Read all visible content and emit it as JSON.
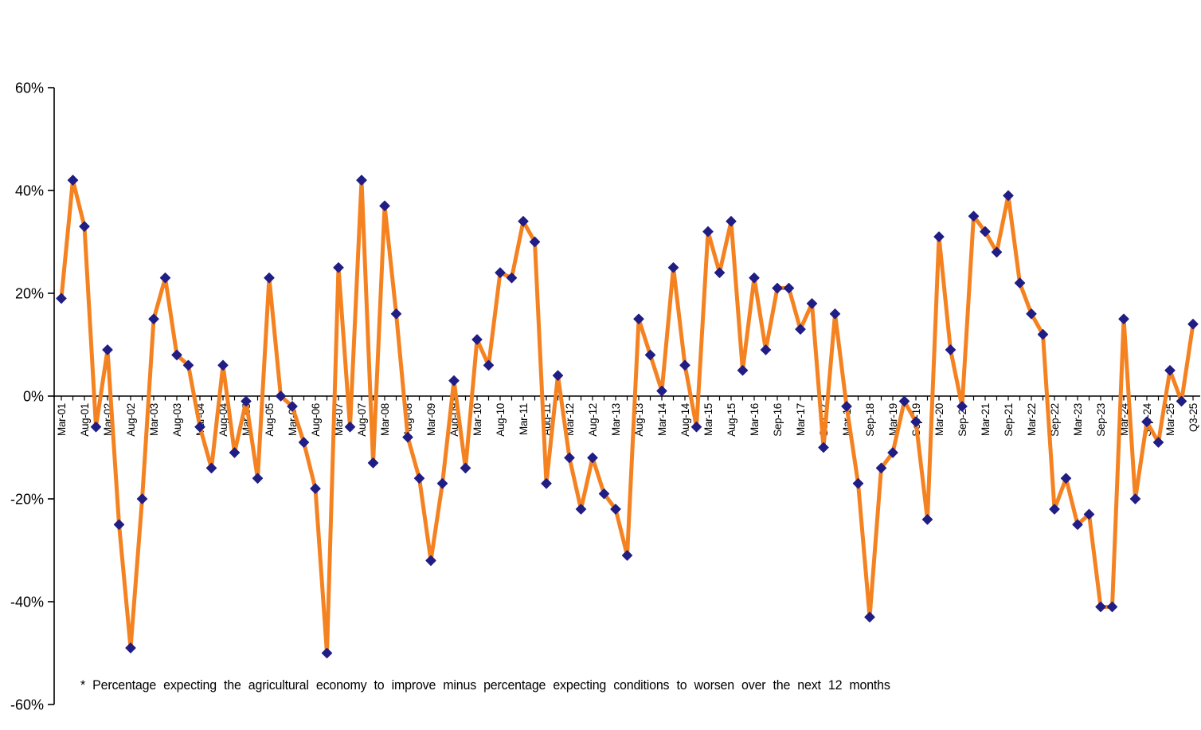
{
  "chart_data": {
    "type": "line",
    "title": "",
    "footnote": "* Percentage expecting the agricultural economy to improve minus percentage expecting conditions to worsen over the next 12 months",
    "x_labels": [
      "Mar-01",
      "Aug-01",
      "Mar-02",
      "Aug-02",
      "Mar-03",
      "Aug-03",
      "Mar-04",
      "Aug-04",
      "Mar-05",
      "Aug-05",
      "Mar-06",
      "Aug-06",
      "Mar-07",
      "Aug-07",
      "Mar-08",
      "Aug-08",
      "Mar-09",
      "Aug-09",
      "Mar-10",
      "Aug-10",
      "Mar-11",
      "Aug-11",
      "Mar-12",
      "Aug-12",
      "Mar-13",
      "Aug-13",
      "Mar-14",
      "Aug-14",
      "Mar-15",
      "Aug-15",
      "Mar-16",
      "Sep-16",
      "Mar-17",
      "Sep-17",
      "Mar-18",
      "Sep-18",
      "Mar-19",
      "Sep-19",
      "Mar-20",
      "Sep-20",
      "Mar-21",
      "Sep-21",
      "Mar-22",
      "Sep-22",
      "Mar-23",
      "Sep-23",
      "Mar-24",
      "Sep-24",
      "Mar-25",
      "Q3-25"
    ],
    "label_every_n_points": 2,
    "values": [
      19,
      42,
      33,
      -6,
      9,
      -25,
      -49,
      -20,
      15,
      23,
      8,
      6,
      -6,
      -14,
      6,
      -11,
      -1,
      -16,
      23,
      0,
      -2,
      -9,
      -18,
      -50,
      25,
      -6,
      42,
      -13,
      37,
      16,
      -8,
      -16,
      -32,
      -17,
      3,
      -14,
      11,
      6,
      24,
      23,
      34,
      30,
      -17,
      4,
      -12,
      -22,
      -12,
      -19,
      -22,
      -31,
      15,
      8,
      1,
      25,
      6,
      -6,
      32,
      24,
      34,
      5,
      23,
      9,
      21,
      21,
      13,
      18,
      -10,
      16,
      -2,
      -17,
      -43,
      -14,
      -11,
      -1,
      -5,
      -24,
      31,
      9,
      -2,
      35,
      32,
      28,
      39,
      22,
      16,
      12,
      -22,
      -16,
      -25,
      -23,
      -41,
      -41,
      15,
      -20,
      -5,
      -9,
      5,
      -1,
      14
    ],
    "y_ticks": [
      {
        "label": "60%",
        "value": 60
      },
      {
        "label": "40%",
        "value": 40
      },
      {
        "label": "20%",
        "value": 20
      },
      {
        "label": "0%",
        "value": 0
      },
      {
        "label": "-20%",
        "value": -20
      },
      {
        "label": "-40%",
        "value": -40
      },
      {
        "label": "-60%",
        "value": -60
      }
    ],
    "ylim": [
      -60,
      60
    ],
    "grid": "none",
    "legend": "none",
    "line_color": "#F58220",
    "marker_color": "#201D85",
    "marker_shape": "diamond",
    "axis_color": "#000000",
    "text_color": "#000000"
  }
}
